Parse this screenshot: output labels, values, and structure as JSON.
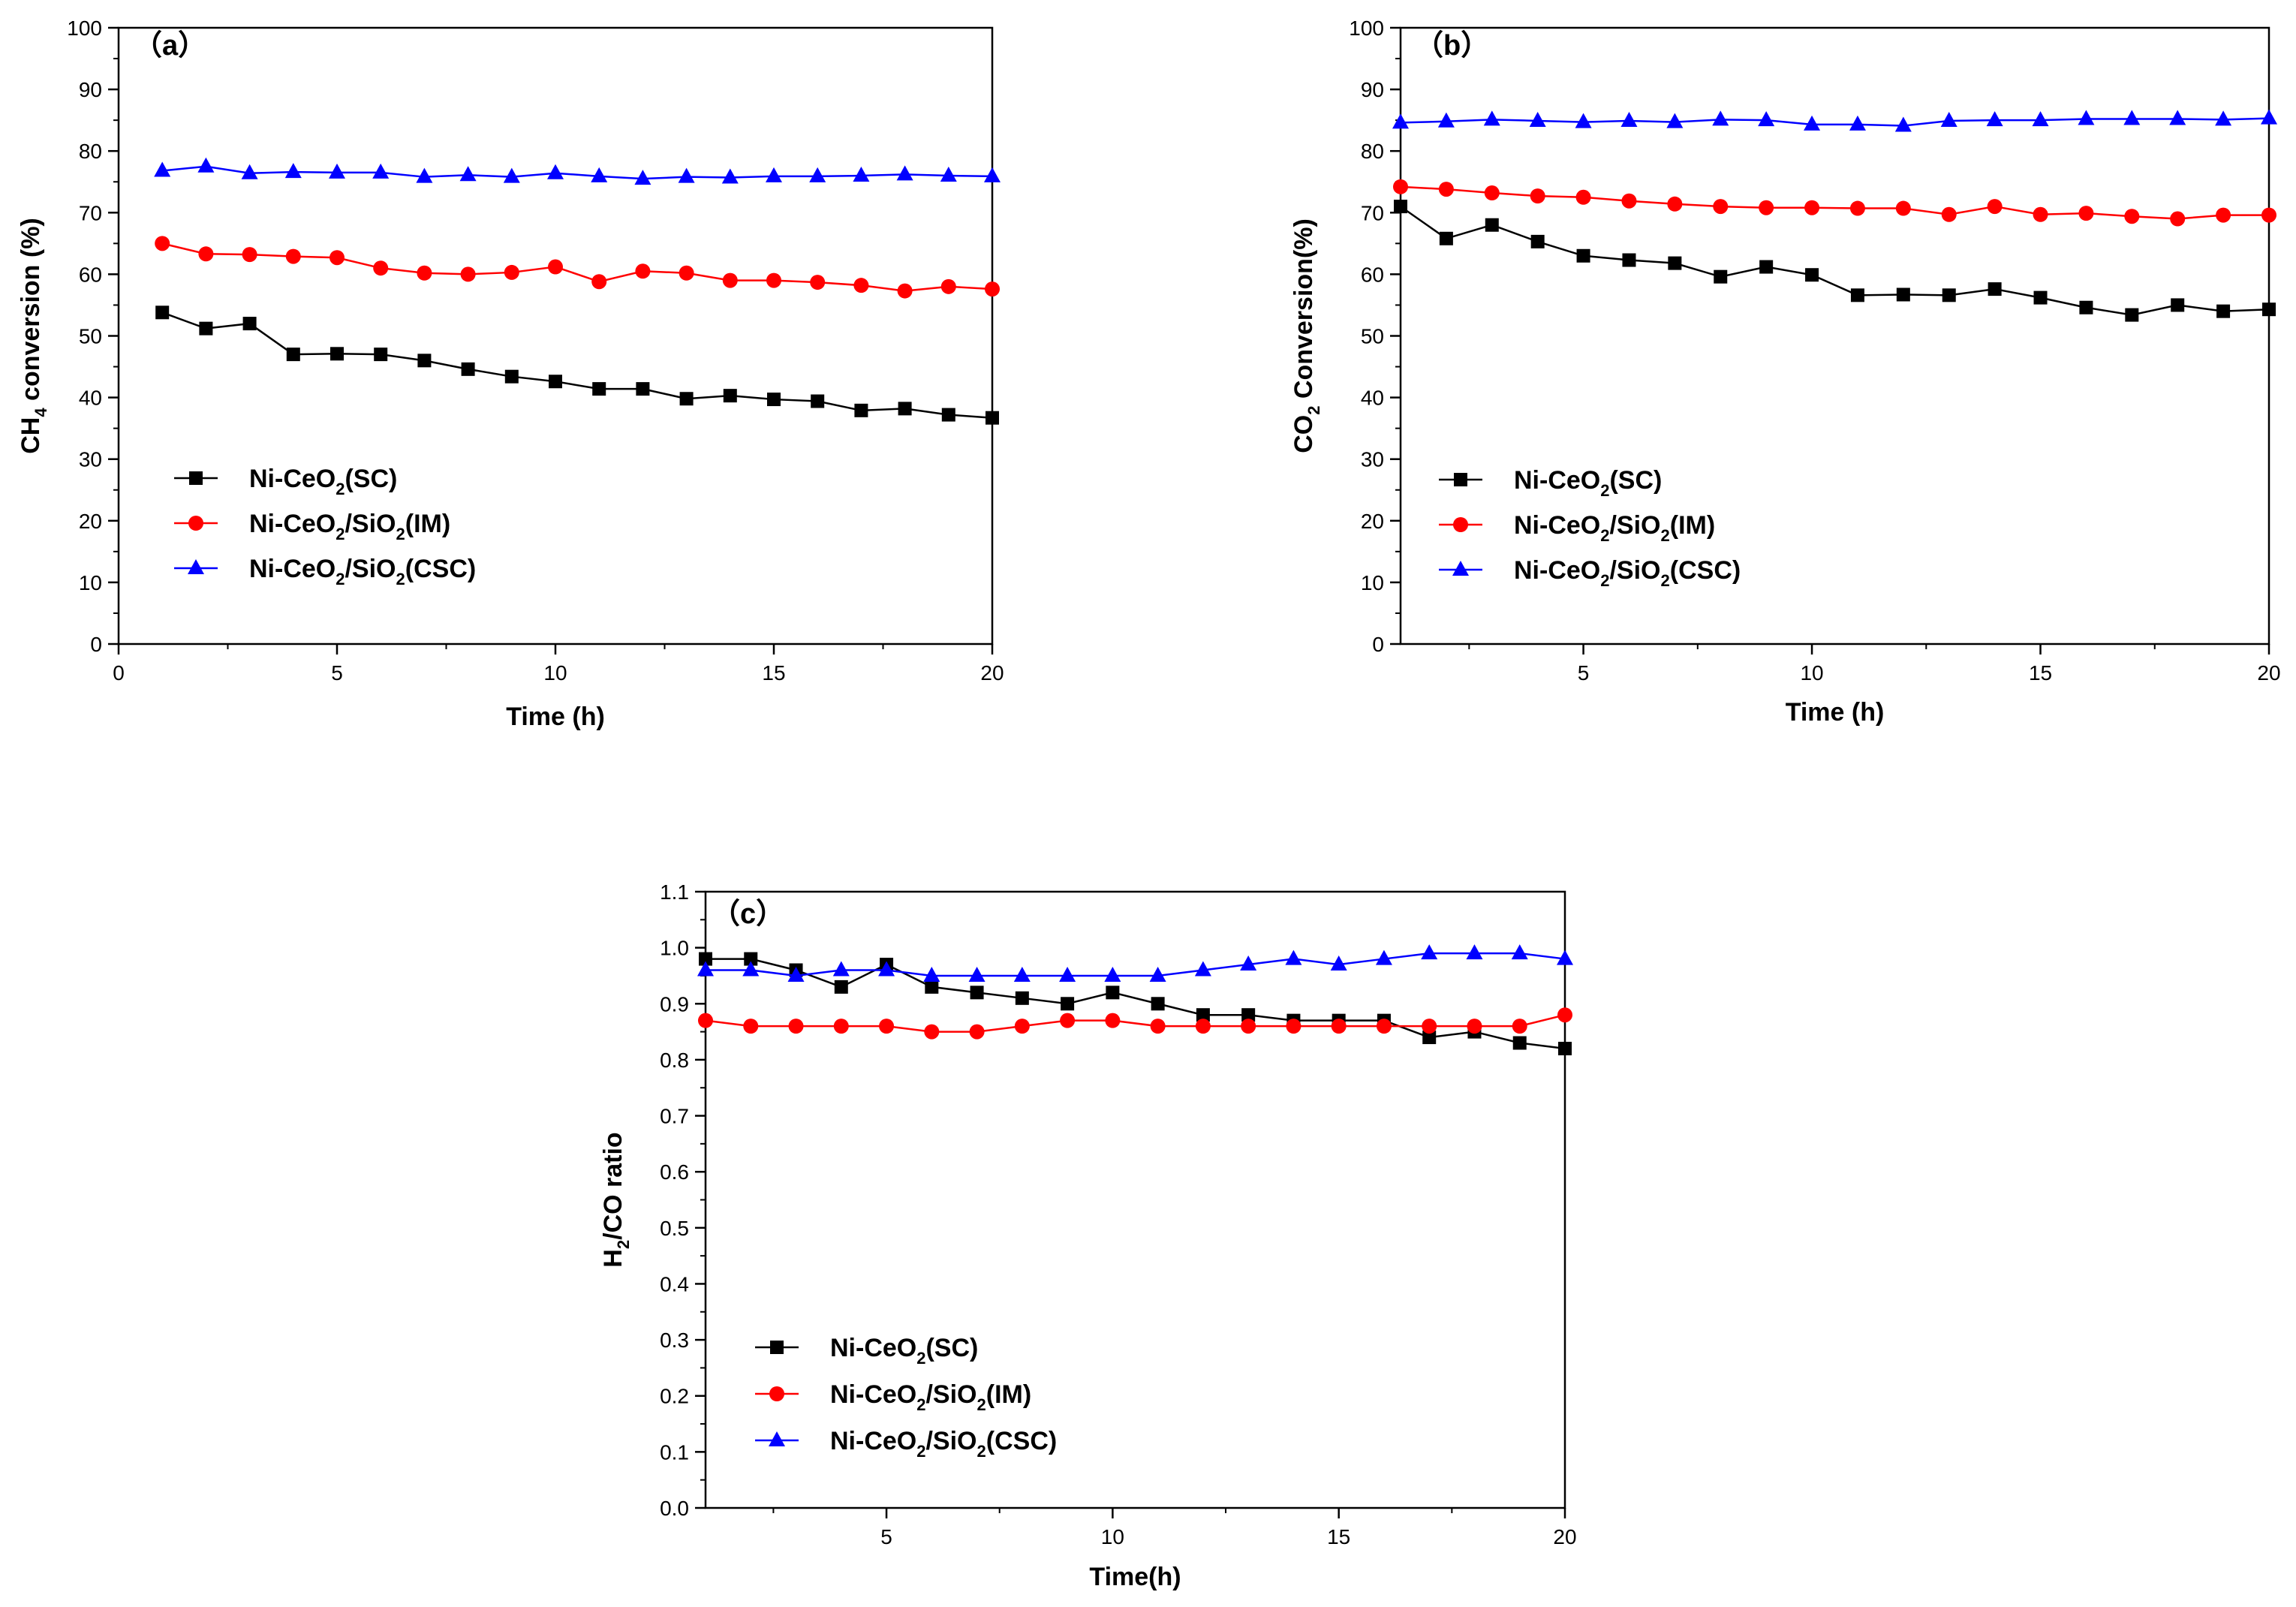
{
  "chart_data": [
    {
      "type": "line",
      "panel_label": "（a）",
      "title": "",
      "xlabel": "Time (h)",
      "ylabel": {
        "pre": "CH",
        "sub": "4",
        "post": " conversion (%)"
      },
      "xlim": [
        0,
        20
      ],
      "ylim": [
        0,
        100
      ],
      "xticks": [
        0,
        5,
        10,
        15,
        20
      ],
      "yticks": [
        0,
        10,
        20,
        30,
        40,
        50,
        60,
        70,
        80,
        90,
        100
      ],
      "grid": false,
      "legend_position": "lower-left",
      "series": [
        {
          "name": "Ni-CeO2(SC)",
          "label": [
            {
              "t": "Ni-CeO"
            },
            {
              "t": "2",
              "sub": true
            },
            {
              "t": "(SC)"
            }
          ],
          "color": "#000000",
          "marker": "square",
          "x": [
            1,
            2,
            3,
            4,
            5,
            6,
            7,
            8,
            9,
            10,
            11,
            12,
            13,
            14,
            15,
            16,
            17,
            18,
            19,
            20
          ],
          "y": [
            53.8,
            51.2,
            52.0,
            47.0,
            47.1,
            47.0,
            46.0,
            44.6,
            43.4,
            42.6,
            41.4,
            41.4,
            39.8,
            40.3,
            39.7,
            39.4,
            37.9,
            38.2,
            37.2,
            36.7
          ]
        },
        {
          "name": "Ni-CeO2/SiO2(IM)",
          "label": [
            {
              "t": "Ni-CeO"
            },
            {
              "t": "2",
              "sub": true
            },
            {
              "t": "/SiO"
            },
            {
              "t": "2",
              "sub": true
            },
            {
              "t": "(IM)"
            }
          ],
          "color": "#ff0000",
          "marker": "circle",
          "x": [
            1,
            2,
            3,
            4,
            5,
            6,
            7,
            8,
            9,
            10,
            11,
            12,
            13,
            14,
            15,
            16,
            17,
            18,
            19,
            20
          ],
          "y": [
            65.0,
            63.3,
            63.2,
            62.9,
            62.7,
            61.0,
            60.2,
            60.0,
            60.3,
            61.2,
            58.8,
            60.5,
            60.2,
            59.0,
            59.0,
            58.7,
            58.2,
            57.3,
            58.0,
            57.6
          ]
        },
        {
          "name": "Ni-CeO2/SiO2(CSC)",
          "label": [
            {
              "t": "Ni-CeO"
            },
            {
              "t": "2",
              "sub": true
            },
            {
              "t": "/SiO"
            },
            {
              "t": "2",
              "sub": true
            },
            {
              "t": "(CSC)"
            }
          ],
          "color": "#0000ff",
          "marker": "triangle",
          "x": [
            1,
            2,
            3,
            4,
            5,
            6,
            7,
            8,
            9,
            10,
            11,
            12,
            13,
            14,
            15,
            16,
            17,
            18,
            19,
            20
          ],
          "y": [
            76.8,
            77.5,
            76.4,
            76.6,
            76.5,
            76.5,
            75.8,
            76.1,
            75.8,
            76.4,
            75.9,
            75.5,
            75.8,
            75.7,
            75.9,
            75.9,
            76.0,
            76.2,
            76.0,
            75.9
          ]
        }
      ]
    },
    {
      "type": "line",
      "panel_label": "（b）",
      "title": "",
      "xlabel": "Time (h)",
      "ylabel": {
        "pre": "CO",
        "sub": "2",
        "post": " Conversion(%)"
      },
      "xlim": [
        1,
        20
      ],
      "ylim": [
        0,
        100
      ],
      "xticks": [
        5,
        10,
        15,
        20
      ],
      "yticks": [
        0,
        10,
        20,
        30,
        40,
        50,
        60,
        70,
        80,
        90,
        100
      ],
      "grid": false,
      "legend_position": "lower-left",
      "series": [
        {
          "name": "Ni-CeO2(SC)",
          "label": [
            {
              "t": "Ni-CeO"
            },
            {
              "t": "2",
              "sub": true
            },
            {
              "t": "(SC)"
            }
          ],
          "color": "#000000",
          "marker": "square",
          "x": [
            1,
            2,
            3,
            4,
            5,
            6,
            7,
            8,
            9,
            10,
            11,
            12,
            13,
            14,
            15,
            16,
            17,
            18,
            19,
            20
          ],
          "y": [
            71.0,
            65.8,
            68.0,
            65.3,
            63.0,
            62.3,
            61.8,
            59.6,
            61.2,
            59.9,
            56.6,
            56.7,
            56.6,
            57.6,
            56.2,
            54.6,
            53.4,
            55.0,
            54.0,
            54.3
          ]
        },
        {
          "name": "Ni-CeO2/SiO2(IM)",
          "label": [
            {
              "t": "Ni-CeO"
            },
            {
              "t": "2",
              "sub": true
            },
            {
              "t": "/SiO"
            },
            {
              "t": "2",
              "sub": true
            },
            {
              "t": "(IM)"
            }
          ],
          "color": "#ff0000",
          "marker": "circle",
          "x": [
            1,
            2,
            3,
            4,
            5,
            6,
            7,
            8,
            9,
            10,
            11,
            12,
            13,
            14,
            15,
            16,
            17,
            18,
            19,
            20
          ],
          "y": [
            74.2,
            73.8,
            73.2,
            72.7,
            72.5,
            71.9,
            71.4,
            71.0,
            70.8,
            70.8,
            70.7,
            70.7,
            69.7,
            71.0,
            69.7,
            69.9,
            69.4,
            69.0,
            69.6,
            69.6
          ]
        },
        {
          "name": "Ni-CeO2/SiO2(CSC)",
          "label": [
            {
              "t": "Ni-CeO"
            },
            {
              "t": "2",
              "sub": true
            },
            {
              "t": "/SiO"
            },
            {
              "t": "2",
              "sub": true
            },
            {
              "t": "(CSC)"
            }
          ],
          "color": "#0000ff",
          "marker": "triangle",
          "x": [
            1,
            2,
            3,
            4,
            5,
            6,
            7,
            8,
            9,
            10,
            11,
            12,
            13,
            14,
            15,
            16,
            17,
            18,
            19,
            20
          ],
          "y": [
            84.6,
            84.8,
            85.1,
            84.9,
            84.7,
            84.9,
            84.7,
            85.1,
            85.0,
            84.3,
            84.3,
            84.1,
            84.9,
            85.0,
            85.0,
            85.2,
            85.2,
            85.2,
            85.1,
            85.3
          ]
        }
      ]
    },
    {
      "type": "line",
      "panel_label": "（c）",
      "title": "",
      "xlabel": "Time(h)",
      "ylabel": {
        "pre": "H",
        "sub": "2",
        "post": "/CO ratio"
      },
      "xlim": [
        1,
        20
      ],
      "ylim": [
        0.0,
        1.1
      ],
      "xticks": [
        5,
        10,
        15,
        20
      ],
      "yticks": [
        0.0,
        0.1,
        0.2,
        0.3,
        0.4,
        0.5,
        0.6,
        0.7,
        0.8,
        0.9,
        1.0,
        1.1
      ],
      "grid": false,
      "legend_position": "lower-left",
      "series": [
        {
          "name": "Ni-CeO2(SC)",
          "label": [
            {
              "t": "Ni-CeO"
            },
            {
              "t": "2",
              "sub": true
            },
            {
              "t": "(SC)"
            }
          ],
          "color": "#000000",
          "marker": "square",
          "x": [
            1,
            2,
            3,
            4,
            5,
            6,
            7,
            8,
            9,
            10,
            11,
            12,
            13,
            14,
            15,
            16,
            17,
            18,
            19,
            20
          ],
          "y": [
            0.98,
            0.98,
            0.96,
            0.93,
            0.97,
            0.93,
            0.92,
            0.91,
            0.9,
            0.92,
            0.9,
            0.88,
            0.88,
            0.87,
            0.87,
            0.87,
            0.84,
            0.85,
            0.83,
            0.82
          ]
        },
        {
          "name": "Ni-CeO2/SiO2(IM)",
          "label": [
            {
              "t": "Ni-CeO"
            },
            {
              "t": "2",
              "sub": true
            },
            {
              "t": "/SiO"
            },
            {
              "t": "2",
              "sub": true
            },
            {
              "t": "(IM)"
            }
          ],
          "color": "#ff0000",
          "marker": "circle",
          "x": [
            1,
            2,
            3,
            4,
            5,
            6,
            7,
            8,
            9,
            10,
            11,
            12,
            13,
            14,
            15,
            16,
            17,
            18,
            19,
            20
          ],
          "y": [
            0.87,
            0.86,
            0.86,
            0.86,
            0.86,
            0.85,
            0.85,
            0.86,
            0.87,
            0.87,
            0.86,
            0.86,
            0.86,
            0.86,
            0.86,
            0.86,
            0.86,
            0.86,
            0.86,
            0.88
          ]
        },
        {
          "name": "Ni-CeO2/SiO2(CSC)",
          "label": [
            {
              "t": "Ni-CeO"
            },
            {
              "t": "2",
              "sub": true
            },
            {
              "t": "/SiO"
            },
            {
              "t": "2",
              "sub": true
            },
            {
              "t": "(CSC)"
            }
          ],
          "color": "#0000ff",
          "marker": "triangle",
          "x": [
            1,
            2,
            3,
            4,
            5,
            6,
            7,
            8,
            9,
            10,
            11,
            12,
            13,
            14,
            15,
            16,
            17,
            18,
            19,
            20
          ],
          "y": [
            0.96,
            0.96,
            0.95,
            0.96,
            0.96,
            0.95,
            0.95,
            0.95,
            0.95,
            0.95,
            0.95,
            0.96,
            0.97,
            0.98,
            0.97,
            0.98,
            0.99,
            0.99,
            0.99,
            0.98
          ]
        }
      ]
    }
  ]
}
